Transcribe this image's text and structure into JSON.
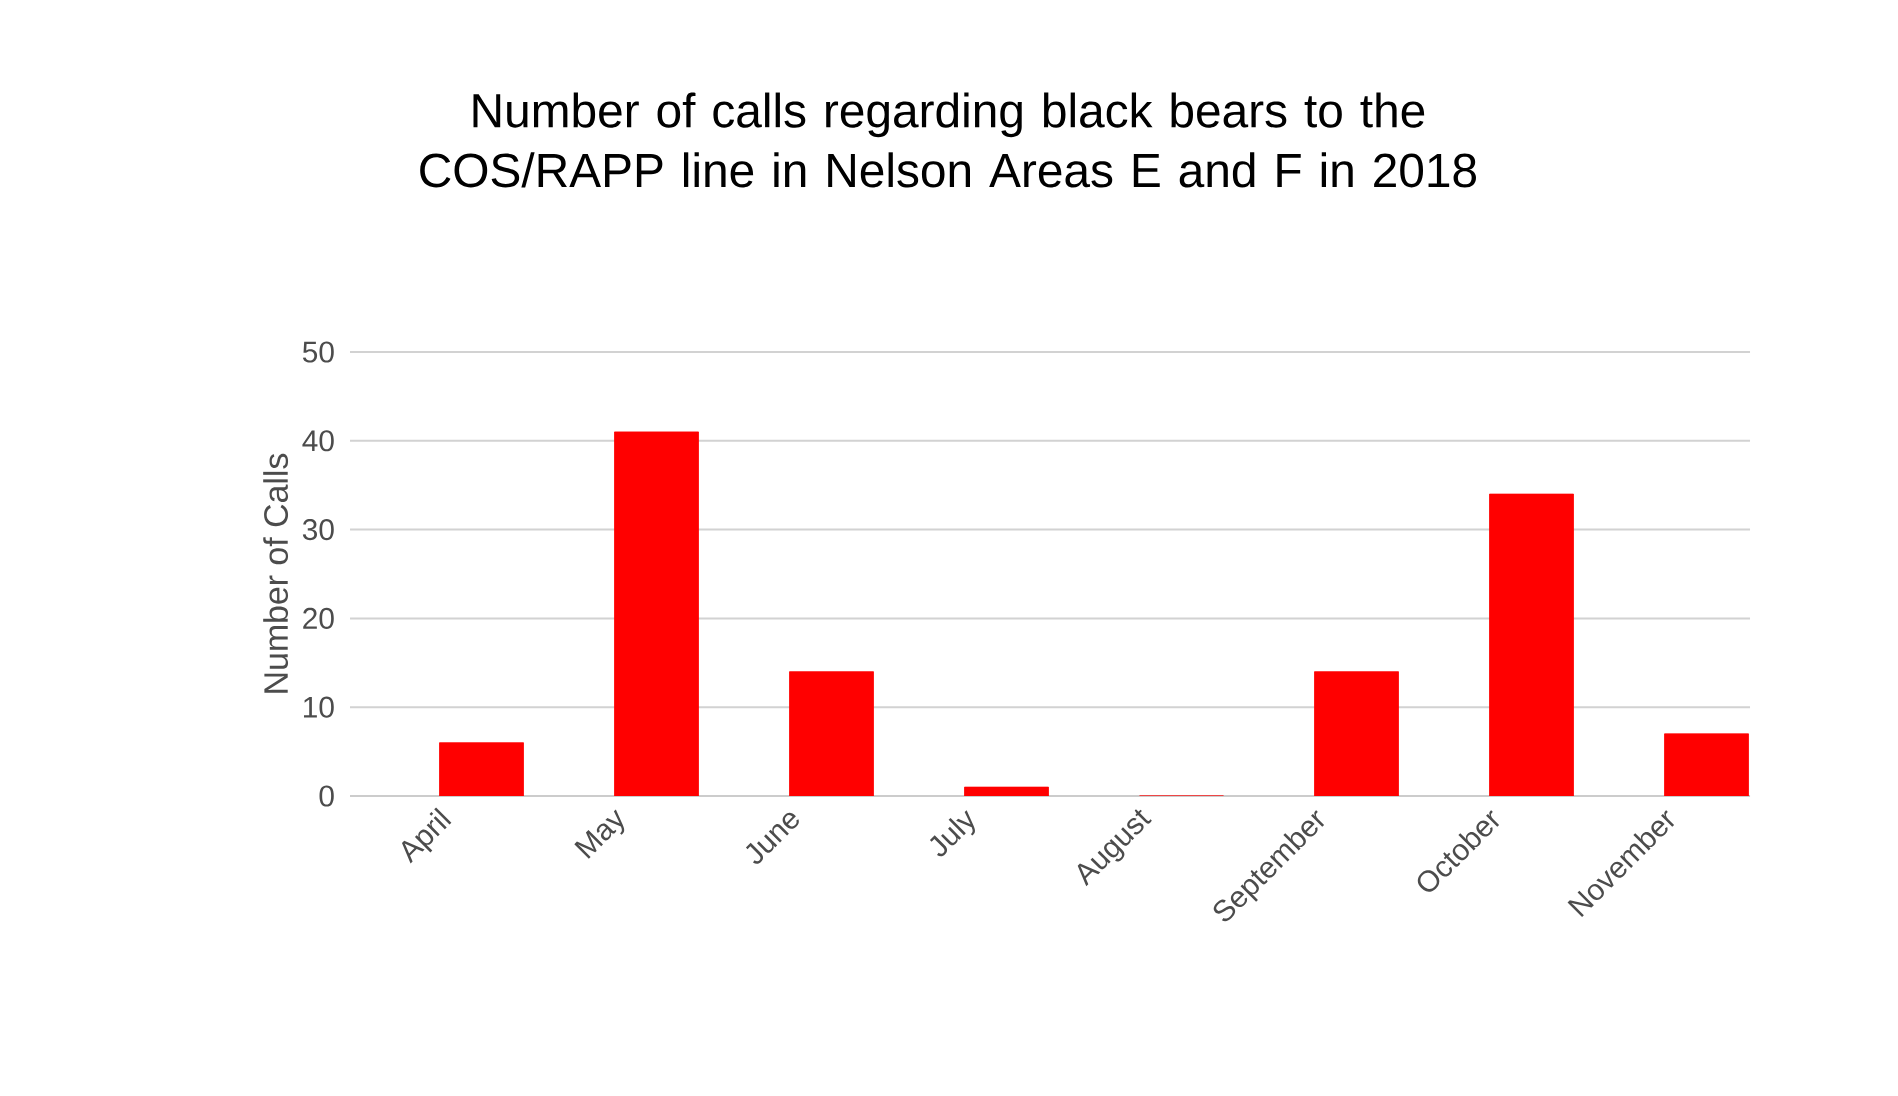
{
  "chart_data": {
    "type": "bar",
    "title": "Number of calls regarding black bears to the COS/RAPP line in Nelson Areas E and F in 2018",
    "ylabel": "Number of Calls",
    "categories": [
      "April",
      "May",
      "June",
      "July",
      "August",
      "September",
      "October",
      "November"
    ],
    "values": [
      6,
      41,
      14,
      1,
      0,
      14,
      34,
      7
    ],
    "color": "#ff0000",
    "ylim": [
      0,
      50
    ],
    "yticks": [
      0,
      10,
      20,
      30,
      40,
      50
    ],
    "grid": "y"
  }
}
